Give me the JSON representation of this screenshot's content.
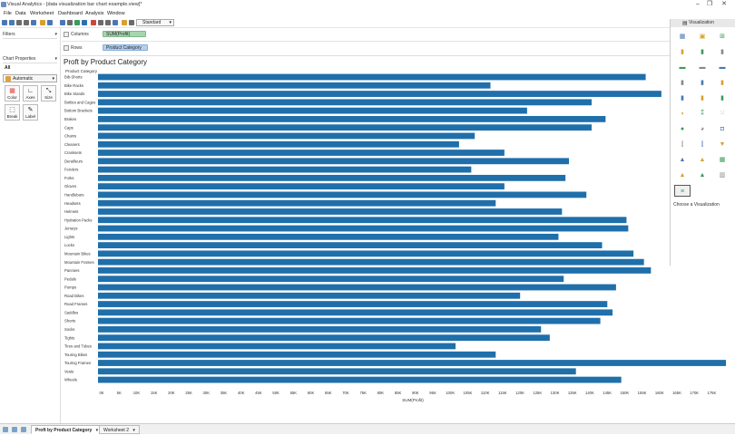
{
  "window": {
    "title": "Visual Analytics - [data visualization bar chart example.view]*",
    "controls": [
      "–",
      "❐",
      "✕"
    ]
  },
  "menu": [
    "File",
    "Data",
    "Worksheet",
    "Dashboard",
    "Analysis",
    "Window"
  ],
  "toolbar": {
    "chart_type": "Standard",
    "icon_colors": [
      "#4a78b5",
      "#4a78b5",
      "#6b6b6b",
      "#6b6b6b",
      "#4a78b5",
      "#d9a030",
      "#4a78b5",
      "#4a78b5",
      "#6b6b6b",
      "#3c9a5a",
      "#2f6fb0",
      "#c94a3a",
      "#6b6b6b",
      "#6b6b6b",
      "#4a78b5",
      "#d9a030",
      "#6b6b6b"
    ]
  },
  "left_panel": {
    "filters": "Filters",
    "chart_properties": "Chart Properties",
    "all": "All",
    "mark_type": "Automatic",
    "marks_buttons": [
      {
        "label": "Color",
        "icon": "color-grid-icon"
      },
      {
        "label": "Axes",
        "icon": "axes-icon"
      },
      {
        "label": "Size",
        "icon": "size-icon"
      },
      {
        "label": "Break",
        "icon": "break-icon"
      },
      {
        "label": "Label",
        "icon": "label-icon"
      }
    ]
  },
  "shelves": {
    "columns_label": "Columns",
    "columns_pill": "SUM(Profit)",
    "rows_label": "Rows",
    "rows_pill": "Product Category"
  },
  "visualization": {
    "header": "Visualization",
    "caption": "Choose a Visualization"
  },
  "tabs": [
    "Proft by Product Category",
    "Worksheet 2"
  ],
  "colors": {
    "bar": "#1f6fab",
    "columns_pill": "#a7d5ae",
    "rows_pill": "#b4d0ee"
  },
  "chart_data": {
    "type": "bar",
    "orientation": "horizontal",
    "title": "Proft by Product Category",
    "category_header": "Product Category",
    "xlabel": "SUM(Profit)",
    "xlim": [
      0,
      180000
    ],
    "xticks": [
      "0K",
      "5K",
      "10K",
      "15K",
      "20K",
      "25K",
      "30K",
      "35K",
      "40K",
      "45K",
      "50K",
      "55K",
      "60K",
      "65K",
      "70K",
      "75K",
      "80K",
      "85K",
      "90K",
      "95K",
      "100K",
      "105K",
      "110K",
      "115K",
      "120K",
      "125K",
      "130K",
      "135K",
      "140K",
      "145K",
      "150K",
      "155K",
      "160K",
      "165K",
      "170K",
      "175K"
    ],
    "categories": [
      "Bib-Shorts",
      "Bike Racks",
      "Bike Stands",
      "Bottles and Cages",
      "Bottom Brackets",
      "Brakes",
      "Caps",
      "Chains",
      "Cleaners",
      "Cranksets",
      "Derailleurs",
      "Fenders",
      "Forks",
      "Gloves",
      "Handlebars",
      "Headsets",
      "Helmets",
      "Hydration Packs",
      "Jerseys",
      "Lights",
      "Locks",
      "Mountain Bikes",
      "Mountain Frames",
      "Panniers",
      "Pedals",
      "Pumps",
      "Road Bikes",
      "Road Frames",
      "Saddles",
      "Shorts",
      "Socks",
      "Tights",
      "Tires and Tubes",
      "Touring Bikes",
      "Touring Frames",
      "Vests",
      "Wheels"
    ],
    "values": [
      157000,
      112500,
      161500,
      141500,
      123000,
      145500,
      141500,
      108000,
      103500,
      116500,
      135000,
      107000,
      134000,
      116500,
      140000,
      114000,
      133000,
      151500,
      152000,
      132000,
      144500,
      153500,
      156500,
      158500,
      133500,
      148500,
      121000,
      146000,
      147500,
      144000,
      127000,
      129500,
      102500,
      114000,
      180000,
      137000,
      150000
    ]
  }
}
